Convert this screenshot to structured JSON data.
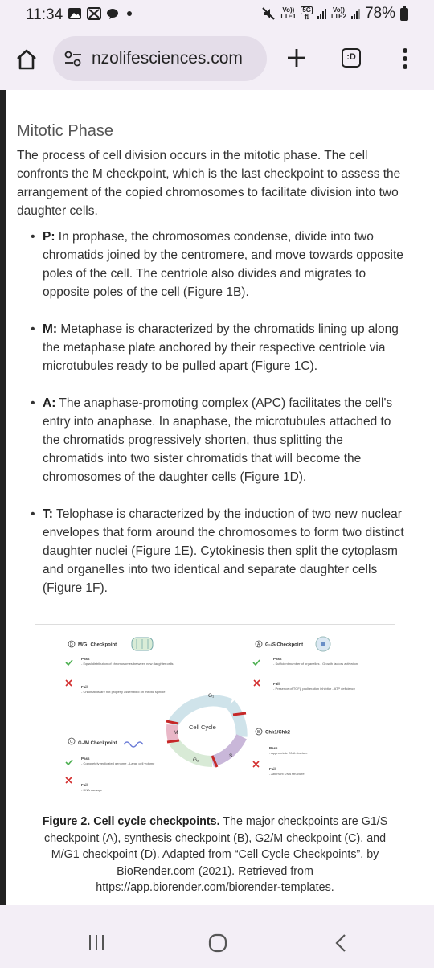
{
  "status_bar": {
    "time": "11:34",
    "battery": "78%",
    "network": "5G",
    "sim1": "LTE1",
    "sim2": "LTE2",
    "volte1": "Vo))",
    "volte2": "Vo))"
  },
  "browser": {
    "url": "nzolifesciences.com",
    "tab_count": ":D"
  },
  "article": {
    "heading": "Mitotic Phase",
    "intro": "The process of cell division occurs in the mitotic phase. The cell confronts the M checkpoint, which is the last checkpoint to assess the arrangement of the copied chromosomes to facilitate division into two daughter cells.",
    "bullets": [
      {
        "label": "P:",
        "text": " In prophase, the chromosomes condense, divide into two chromatids joined by the centromere, and move towards opposite poles of the cell. The centriole also divides and migrates to opposite poles of the cell (Figure 1B)."
      },
      {
        "label": "M:",
        "text": " Metaphase is characterized by the chromatids lining up along the metaphase plate anchored by their respective centriole via microtubules ready to be pulled apart (Figure 1C)."
      },
      {
        "label": "A:",
        "text": " The anaphase-promoting complex (APC) facilitates the cell's entry into anaphase. In anaphase, the microtubules attached to the chromatids progressively shorten, thus splitting the chromatids into two sister chromatids that will become the chromosomes of the daughter cells (Figure 1D)."
      },
      {
        "label": "T:",
        "text": " Telophase is characterized by the induction of two new nuclear envelopes that form around the chromosomes to form two distinct daughter nuclei (Figure 1E). Cytokinesis then split the cytoplasm and organelles into two identical and separate daughter cells (Figure 1F)."
      }
    ]
  },
  "figure": {
    "center_label": "Cell Cycle",
    "phases": {
      "g1": "G₁",
      "s": "S",
      "g2": "G₂",
      "m": "M"
    },
    "checkpoints": {
      "mg1": {
        "letter": "D",
        "title": "M/G₁ Checkpoint",
        "pass": "Pass",
        "pass_items": "- Equal distribution of chromosomes between new daughter cells",
        "fail": "Fail",
        "fail_items": "- Chromatids are not properly assembled on mitotic spindle"
      },
      "g1s": {
        "letter": "A",
        "title": "G₁/S Checkpoint",
        "pass": "Pass",
        "pass_items": "- Sufficient number of organelles - Growth factors activation",
        "fail": "Fail",
        "fail_items": "- Presence of TGFβ proliferation inhibitor - ATP deficiency"
      },
      "g2m": {
        "letter": "C",
        "title": "G₂/M Checkpoint",
        "pass": "Pass",
        "pass_items": "- Completely replicated genome - Large cell volume",
        "fail": "Fail",
        "fail_items": "- DNA damage"
      },
      "chk": {
        "letter": "B",
        "title": "Chk1/Chk2",
        "pass": "Pass",
        "pass_items": "- Appropriate DNA stucture",
        "fail": "Fail",
        "fail_items": "- Aberrant DNA structure"
      }
    },
    "caption_bold": "Figure 2. Cell cycle checkpoints.",
    "caption_text": " The major checkpoints are G1/S checkpoint (A), synthesis checkpoint (B), G2/M checkpoint (C), and M/G1 checkpoint (D). Adapted from “Cell Cycle Checkpoints”, by BioRender.com (2021). Retrieved from https://app.biorender.com/biorender-templates."
  },
  "colors": {
    "pass": "#4caf50",
    "fail": "#d32f2f",
    "g1": "#cfe3ea",
    "s": "#c9b7d9",
    "g2": "#d8ead6",
    "m": "#e9b7c7",
    "marker": "#c62828"
  },
  "icons": [
    "home-icon",
    "site-settings-icon",
    "new-tab-icon",
    "tab-switcher-icon",
    "more-options-icon",
    "recent-apps-icon",
    "home-nav-icon",
    "back-icon"
  ]
}
